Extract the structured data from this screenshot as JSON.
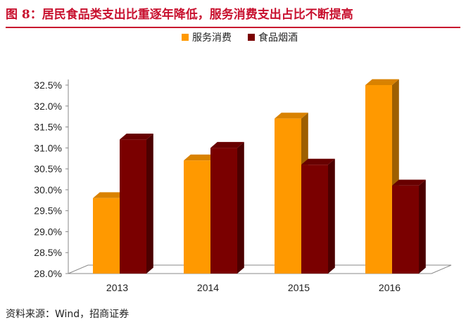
{
  "figure": {
    "title": "图 8：居民食品类支出比重逐年降低，服务消费支出占比不断提高",
    "source": "资料来源：Wind，招商证券"
  },
  "colors": {
    "title": "#c8102e",
    "series_1": "#ff9900",
    "series_2": "#7a0000"
  },
  "chart_data": {
    "type": "bar",
    "categories": [
      "2013",
      "2014",
      "2015",
      "2016"
    ],
    "series": [
      {
        "name": "服务消费",
        "values": [
          29.8,
          30.7,
          31.7,
          32.5
        ]
      },
      {
        "name": "食品烟酒",
        "values": [
          31.2,
          31.0,
          30.6,
          30.1
        ]
      }
    ],
    "ylim": [
      28.0,
      32.5
    ],
    "yticks": [
      "28.0%",
      "28.5%",
      "29.0%",
      "29.5%",
      "30.0%",
      "30.5%",
      "31.0%",
      "31.5%",
      "32.0%",
      "32.5%"
    ],
    "legend_position": "top",
    "grid": false,
    "style": "3d"
  }
}
